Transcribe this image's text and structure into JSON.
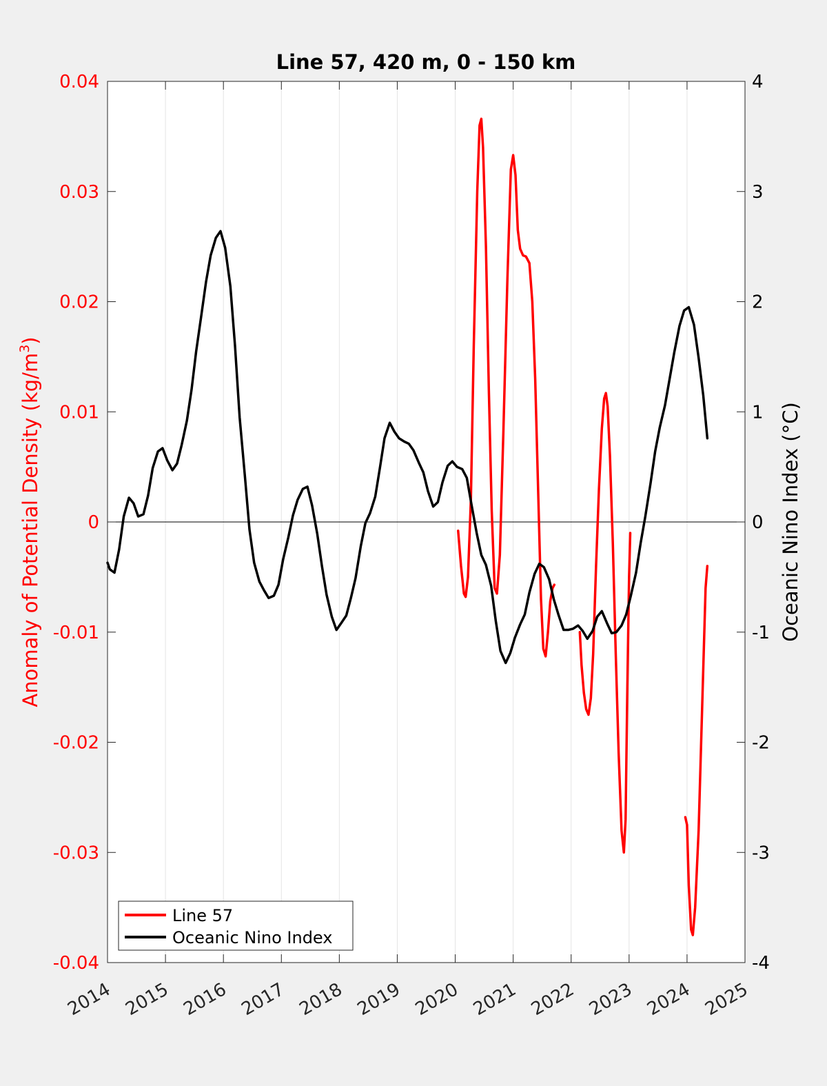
{
  "chart_data": {
    "type": "line",
    "title": "Line 57, 420 m, 0 - 150 km",
    "xlim": [
      2014,
      2025
    ],
    "x_ticks": [
      "2014",
      "2015",
      "2016",
      "2017",
      "2018",
      "2019",
      "2020",
      "2021",
      "2022",
      "2023",
      "2024",
      "2025"
    ],
    "left_axis": {
      "label": "Anomaly of Potential Density (kg/m",
      "label_sup": "3",
      "label_end": ")",
      "ylim": [
        -0.04,
        0.04
      ],
      "ticks": [
        "-0.04",
        "-0.03",
        "-0.02",
        "-0.01",
        "0",
        "0.01",
        "0.02",
        "0.03",
        "0.04"
      ],
      "color": "#ff0000"
    },
    "right_axis": {
      "label": "Oceanic Nino Index (°C)",
      "ylim": [
        -4,
        4
      ],
      "ticks": [
        "-4",
        "-3",
        "-2",
        "-1",
        "0",
        "1",
        "2",
        "3",
        "4"
      ],
      "color": "#000000"
    },
    "legend": {
      "placement": "bottom-left"
    },
    "series": [
      {
        "name": "Line 57",
        "axis": "left",
        "color": "#ff0000",
        "segments": [
          [
            [
              2020.05,
              -0.0008
            ],
            [
              2020.1,
              -0.004
            ],
            [
              2020.15,
              -0.0065
            ],
            [
              2020.18,
              -0.0068
            ],
            [
              2020.22,
              -0.005
            ],
            [
              2020.27,
              0.002
            ],
            [
              2020.32,
              0.016
            ],
            [
              2020.38,
              0.03
            ],
            [
              2020.42,
              0.036
            ],
            [
              2020.45,
              0.0366
            ],
            [
              2020.48,
              0.034
            ],
            [
              2020.53,
              0.025
            ],
            [
              2020.58,
              0.012
            ],
            [
              2020.63,
              0.001
            ],
            [
              2020.68,
              -0.006
            ],
            [
              2020.72,
              -0.0065
            ],
            [
              2020.77,
              -0.003
            ],
            [
              2020.83,
              0.008
            ],
            [
              2020.9,
              0.022
            ],
            [
              2020.96,
              0.032
            ],
            [
              2021.0,
              0.0333
            ],
            [
              2021.04,
              0.0315
            ],
            [
              2021.08,
              0.0265
            ],
            [
              2021.12,
              0.0248
            ],
            [
              2021.17,
              0.0242
            ],
            [
              2021.22,
              0.0241
            ],
            [
              2021.28,
              0.0235
            ],
            [
              2021.33,
              0.02
            ],
            [
              2021.38,
              0.013
            ],
            [
              2021.43,
              0.003
            ],
            [
              2021.48,
              -0.007
            ],
            [
              2021.52,
              -0.0115
            ],
            [
              2021.56,
              -0.0122
            ],
            [
              2021.6,
              -0.01
            ],
            [
              2021.64,
              -0.0072
            ],
            [
              2021.68,
              -0.006
            ],
            [
              2021.71,
              -0.0057
            ]
          ],
          [
            [
              2022.15,
              -0.01
            ],
            [
              2022.18,
              -0.013
            ],
            [
              2022.22,
              -0.0155
            ],
            [
              2022.26,
              -0.017
            ],
            [
              2022.3,
              -0.0175
            ],
            [
              2022.34,
              -0.016
            ],
            [
              2022.38,
              -0.012
            ],
            [
              2022.43,
              -0.004
            ],
            [
              2022.48,
              0.003
            ],
            [
              2022.53,
              0.0085
            ],
            [
              2022.57,
              0.0112
            ],
            [
              2022.6,
              0.0117
            ],
            [
              2022.63,
              0.0105
            ],
            [
              2022.67,
              0.006
            ],
            [
              2022.72,
              -0.002
            ],
            [
              2022.77,
              -0.012
            ],
            [
              2022.82,
              -0.021
            ],
            [
              2022.87,
              -0.028
            ],
            [
              2022.91,
              -0.03
            ],
            [
              2022.94,
              -0.027
            ],
            [
              2022.97,
              -0.015
            ],
            [
              2023.0,
              -0.005
            ],
            [
              2023.02,
              -0.001
            ]
          ],
          [
            [
              2023.97,
              -0.0268
            ],
            [
              2024.0,
              -0.0275
            ],
            [
              2024.03,
              -0.033
            ],
            [
              2024.07,
              -0.037
            ],
            [
              2024.1,
              -0.0375
            ],
            [
              2024.14,
              -0.035
            ],
            [
              2024.2,
              -0.028
            ],
            [
              2024.26,
              -0.017
            ],
            [
              2024.32,
              -0.006
            ],
            [
              2024.35,
              -0.004
            ]
          ]
        ]
      },
      {
        "name": "Oceanic Nino Index",
        "axis": "right",
        "color": "#000000",
        "points": [
          [
            2014.0,
            -0.37
          ],
          [
            2014.04,
            -0.43
          ],
          [
            2014.12,
            -0.46
          ],
          [
            2014.2,
            -0.25
          ],
          [
            2014.28,
            0.05
          ],
          [
            2014.37,
            0.22
          ],
          [
            2014.45,
            0.17
          ],
          [
            2014.53,
            0.05
          ],
          [
            2014.62,
            0.07
          ],
          [
            2014.7,
            0.24
          ],
          [
            2014.78,
            0.49
          ],
          [
            2014.87,
            0.64
          ],
          [
            2014.95,
            0.67
          ],
          [
            2015.03,
            0.56
          ],
          [
            2015.12,
            0.47
          ],
          [
            2015.2,
            0.53
          ],
          [
            2015.28,
            0.7
          ],
          [
            2015.37,
            0.92
          ],
          [
            2015.45,
            1.2
          ],
          [
            2015.53,
            1.55
          ],
          [
            2015.62,
            1.88
          ],
          [
            2015.7,
            2.18
          ],
          [
            2015.78,
            2.42
          ],
          [
            2015.87,
            2.58
          ],
          [
            2015.95,
            2.64
          ],
          [
            2016.03,
            2.49
          ],
          [
            2016.12,
            2.14
          ],
          [
            2016.2,
            1.6
          ],
          [
            2016.28,
            0.95
          ],
          [
            2016.37,
            0.42
          ],
          [
            2016.45,
            -0.07
          ],
          [
            2016.53,
            -0.37
          ],
          [
            2016.62,
            -0.54
          ],
          [
            2016.7,
            -0.62
          ],
          [
            2016.78,
            -0.69
          ],
          [
            2016.87,
            -0.67
          ],
          [
            2016.95,
            -0.57
          ],
          [
            2017.03,
            -0.34
          ],
          [
            2017.12,
            -0.14
          ],
          [
            2017.2,
            0.06
          ],
          [
            2017.28,
            0.2
          ],
          [
            2017.37,
            0.3
          ],
          [
            2017.45,
            0.32
          ],
          [
            2017.53,
            0.15
          ],
          [
            2017.62,
            -0.11
          ],
          [
            2017.7,
            -0.4
          ],
          [
            2017.78,
            -0.66
          ],
          [
            2017.87,
            -0.86
          ],
          [
            2017.95,
            -0.98
          ],
          [
            2018.03,
            -0.92
          ],
          [
            2018.12,
            -0.85
          ],
          [
            2018.2,
            -0.69
          ],
          [
            2018.28,
            -0.51
          ],
          [
            2018.37,
            -0.22
          ],
          [
            2018.45,
            -0.01
          ],
          [
            2018.53,
            0.08
          ],
          [
            2018.62,
            0.23
          ],
          [
            2018.7,
            0.49
          ],
          [
            2018.78,
            0.76
          ],
          [
            2018.87,
            0.9
          ],
          [
            2018.95,
            0.82
          ],
          [
            2019.03,
            0.76
          ],
          [
            2019.12,
            0.73
          ],
          [
            2019.2,
            0.71
          ],
          [
            2019.28,
            0.65
          ],
          [
            2019.37,
            0.54
          ],
          [
            2019.45,
            0.45
          ],
          [
            2019.53,
            0.28
          ],
          [
            2019.62,
            0.14
          ],
          [
            2019.7,
            0.18
          ],
          [
            2019.78,
            0.36
          ],
          [
            2019.87,
            0.51
          ],
          [
            2019.95,
            0.55
          ],
          [
            2020.03,
            0.5
          ],
          [
            2020.12,
            0.48
          ],
          [
            2020.2,
            0.4
          ],
          [
            2020.28,
            0.16
          ],
          [
            2020.37,
            -0.1
          ],
          [
            2020.45,
            -0.3
          ],
          [
            2020.53,
            -0.39
          ],
          [
            2020.62,
            -0.58
          ],
          [
            2020.7,
            -0.9
          ],
          [
            2020.78,
            -1.17
          ],
          [
            2020.87,
            -1.28
          ],
          [
            2020.95,
            -1.19
          ],
          [
            2021.03,
            -1.05
          ],
          [
            2021.12,
            -0.93
          ],
          [
            2021.2,
            -0.84
          ],
          [
            2021.28,
            -0.64
          ],
          [
            2021.37,
            -0.47
          ],
          [
            2021.45,
            -0.38
          ],
          [
            2021.53,
            -0.41
          ],
          [
            2021.62,
            -0.52
          ],
          [
            2021.7,
            -0.7
          ],
          [
            2021.78,
            -0.84
          ],
          [
            2021.87,
            -0.98
          ],
          [
            2021.95,
            -0.98
          ],
          [
            2022.03,
            -0.97
          ],
          [
            2022.12,
            -0.94
          ],
          [
            2022.2,
            -0.99
          ],
          [
            2022.28,
            -1.06
          ],
          [
            2022.37,
            -0.99
          ],
          [
            2022.45,
            -0.86
          ],
          [
            2022.53,
            -0.81
          ],
          [
            2022.62,
            -0.92
          ],
          [
            2022.7,
            -1.01
          ],
          [
            2022.78,
            -1.0
          ],
          [
            2022.87,
            -0.94
          ],
          [
            2022.95,
            -0.84
          ],
          [
            2023.03,
            -0.67
          ],
          [
            2023.12,
            -0.46
          ],
          [
            2023.2,
            -0.19
          ],
          [
            2023.28,
            0.05
          ],
          [
            2023.37,
            0.35
          ],
          [
            2023.45,
            0.64
          ],
          [
            2023.53,
            0.86
          ],
          [
            2023.62,
            1.06
          ],
          [
            2023.7,
            1.3
          ],
          [
            2023.78,
            1.54
          ],
          [
            2023.87,
            1.78
          ],
          [
            2023.95,
            1.92
          ],
          [
            2024.03,
            1.95
          ],
          [
            2024.12,
            1.79
          ],
          [
            2024.2,
            1.49
          ],
          [
            2024.28,
            1.15
          ],
          [
            2024.35,
            0.76
          ]
        ]
      }
    ]
  }
}
